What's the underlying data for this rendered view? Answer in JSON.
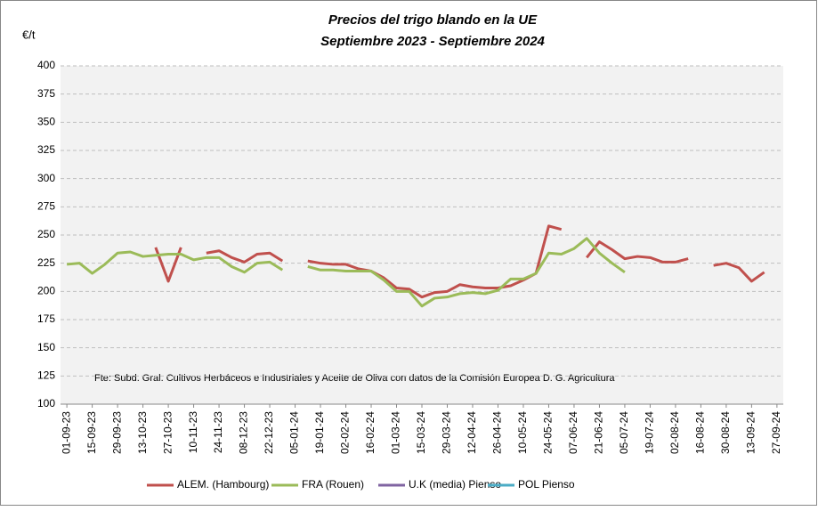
{
  "chart_data": {
    "type": "line",
    "title": "Precios del trigo blando en la UE",
    "subtitle": "Septiembre 2023 - Septiembre 2024",
    "y_label": "€/t",
    "annotation": "Fte: Subd. Gral. Cultivos Herbáceos e Industriales y Aceite de Oliva con  datos de la Comisión Europea D. G. Agricultura",
    "categories": [
      "01-09-23",
      null,
      "15-09-23",
      null,
      "29-09-23",
      null,
      "13-10-23",
      null,
      "27-10-23",
      null,
      "10-11-23",
      null,
      "24-11-23",
      null,
      "08-12-23",
      null,
      "22-12-23",
      null,
      "05-01-24",
      null,
      "19-01-24",
      null,
      "02-02-24",
      null,
      "16-02-24",
      null,
      "01-03-24",
      null,
      "15-03-24",
      null,
      "29-03-24",
      null,
      "12-04-24",
      null,
      "26-04-24",
      null,
      "10-05-24",
      null,
      "24-05-24",
      null,
      "07-06-24",
      null,
      "21-06-24",
      null,
      "05-07-24",
      null,
      "19-07-24",
      null,
      "02-08-24",
      null,
      "16-08-24",
      null,
      "30-08-24",
      null,
      "13-09-24",
      null,
      "27-09-24"
    ],
    "series": [
      {
        "name": "ALEM. (Hambourg)",
        "color": "#c0504d",
        "values": [
          null,
          null,
          null,
          null,
          null,
          null,
          null,
          239,
          209,
          239,
          null,
          234,
          236,
          230,
          226,
          233,
          234,
          227,
          null,
          227,
          225,
          224,
          224,
          220,
          218,
          212,
          203,
          202,
          195,
          199,
          200,
          206,
          204,
          203,
          203,
          205,
          210,
          216,
          258,
          255,
          null,
          230,
          244,
          237,
          229,
          231,
          230,
          226,
          226,
          229,
          null,
          223,
          225,
          221,
          209,
          217,
          null
        ]
      },
      {
        "name": "FRA (Rouen)",
        "color": "#9bbb59",
        "values": [
          224,
          225,
          216,
          224,
          234,
          235,
          231,
          232,
          233,
          233,
          228,
          230,
          230,
          222,
          217,
          225,
          226,
          219,
          null,
          222,
          219,
          219,
          218,
          218,
          218,
          210,
          200,
          200,
          187,
          194,
          195,
          198,
          199,
          198,
          201,
          211,
          211,
          216,
          234,
          233,
          238,
          247,
          234,
          225,
          217,
          null,
          null,
          null,
          null,
          null,
          null,
          null,
          null,
          null,
          null,
          null,
          null
        ]
      },
      {
        "name": "U.K (media) Pienso",
        "color": "#8064a2",
        "values": [
          null,
          null,
          null,
          null,
          null,
          null,
          null,
          null,
          null,
          null,
          null,
          null,
          null,
          null,
          null,
          null,
          null,
          null,
          null,
          null,
          null,
          null,
          null,
          null,
          null,
          null,
          null,
          null,
          null,
          null,
          null,
          null,
          null,
          null,
          null,
          null,
          null,
          null,
          null,
          null,
          null,
          null,
          null,
          null,
          null,
          null,
          null,
          null,
          null,
          null,
          null,
          null,
          null,
          null,
          null,
          null,
          null
        ]
      },
      {
        "name": "POL  Pienso",
        "color": "#4bacc6",
        "values": [
          null,
          null,
          null,
          null,
          null,
          null,
          null,
          null,
          null,
          null,
          null,
          null,
          null,
          null,
          null,
          null,
          null,
          null,
          null,
          null,
          null,
          null,
          null,
          null,
          null,
          null,
          null,
          null,
          null,
          null,
          null,
          null,
          null,
          null,
          null,
          null,
          null,
          null,
          null,
          null,
          null,
          null,
          null,
          null,
          null,
          null,
          null,
          null,
          null,
          null,
          null,
          null,
          null,
          null,
          null,
          null,
          null
        ]
      }
    ],
    "ylim": [
      100,
      400
    ],
    "yticks": [
      100,
      125,
      150,
      175,
      200,
      225,
      250,
      275,
      300,
      325,
      350,
      375,
      400
    ],
    "grid": true
  }
}
